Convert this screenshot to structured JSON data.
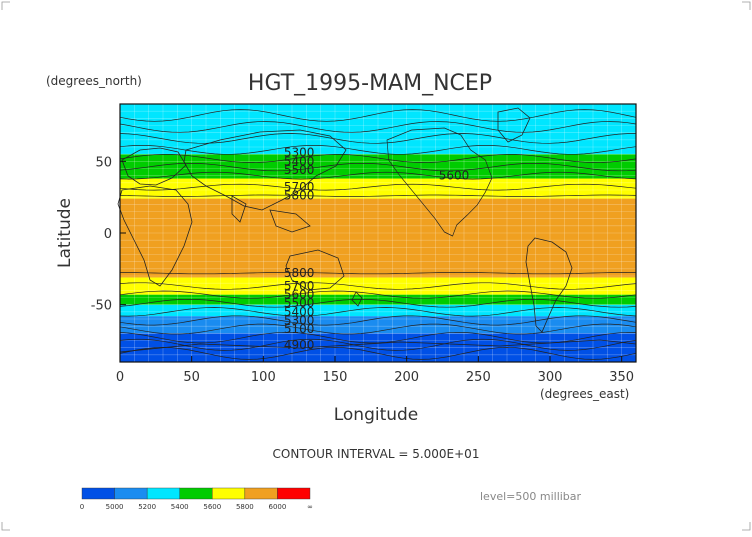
{
  "chart_data": {
    "type": "heatmap",
    "title": "HGT_1995-MAM_NCEP",
    "xlabel": "Longitude",
    "ylabel": "Latitude",
    "x_units": "(degrees_east)",
    "y_units": "(degrees_north)",
    "xlim": [
      0,
      360
    ],
    "ylim": [
      -90,
      90
    ],
    "x_ticks": [
      "0",
      "50",
      "100",
      "150",
      "200",
      "250",
      "300",
      "350"
    ],
    "y_ticks": [
      "50",
      "0",
      "-50"
    ],
    "grid": true,
    "contour_interval_text": "CONTOUR INTERVAL = 5.000E+01",
    "level_text": "level=500 millibar",
    "colorbar": {
      "tick_labels": [
        "0",
        "5000",
        "5200",
        "5400",
        "5600",
        "5800",
        "6000",
        "∞"
      ],
      "colors": [
        "#0050e6",
        "#1a8cf0",
        "#00e6ff",
        "#00cc00",
        "#ffff00",
        "#f0a020",
        "#ff0000"
      ]
    },
    "bands": [
      {
        "lat": [
          -90,
          -70
        ],
        "color": "#0050e6"
      },
      {
        "lat": [
          -70,
          -58
        ],
        "color": "#1a8cf0"
      },
      {
        "lat": [
          -58,
          -50
        ],
        "color": "#00e6ff"
      },
      {
        "lat": [
          -50,
          -43
        ],
        "color": "#00cc00"
      },
      {
        "lat": [
          -43,
          -31
        ],
        "color": "#ffff00"
      },
      {
        "lat": [
          -31,
          24
        ],
        "color": "#f0a020"
      },
      {
        "lat": [
          24,
          38
        ],
        "color": "#ffff00"
      },
      {
        "lat": [
          38,
          55
        ],
        "color": "#00cc00"
      },
      {
        "lat": [
          55,
          90
        ],
        "color": "#00e6ff"
      }
    ],
    "contour_labels": [
      {
        "text": "5300",
        "lon": 125,
        "lat": 56
      },
      {
        "text": "5400",
        "lon": 125,
        "lat": 50
      },
      {
        "text": "5500",
        "lon": 125,
        "lat": 44
      },
      {
        "text": "5600",
        "lon": 233,
        "lat": 40
      },
      {
        "text": "5700",
        "lon": 125,
        "lat": 32
      },
      {
        "text": "5800",
        "lon": 125,
        "lat": 26
      },
      {
        "text": "5800",
        "lon": 125,
        "lat": -28
      },
      {
        "text": "5700",
        "lon": 125,
        "lat": -37
      },
      {
        "text": "5600",
        "lon": 125,
        "lat": -43
      },
      {
        "text": "5500",
        "lon": 125,
        "lat": -49
      },
      {
        "text": "5400",
        "lon": 125,
        "lat": -55
      },
      {
        "text": "5300",
        "lon": 125,
        "lat": -61
      },
      {
        "text": "5100",
        "lon": 125,
        "lat": -67
      },
      {
        "text": "4900",
        "lon": 125,
        "lat": -78
      }
    ]
  }
}
